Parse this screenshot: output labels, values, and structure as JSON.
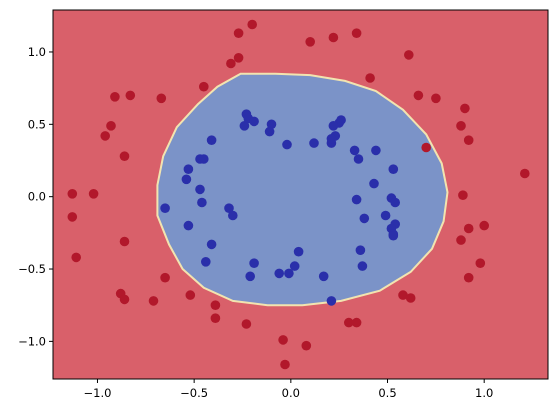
{
  "chart_data": {
    "type": "scatter",
    "title": "",
    "xlabel": "",
    "ylabel": "",
    "xlim": [
      -1.23,
      1.33
    ],
    "ylim": [
      -1.26,
      1.29
    ],
    "x_ticks": [
      -1.0,
      -0.5,
      0.0,
      0.5,
      1.0
    ],
    "x_tick_labels": [
      "−1.0",
      "−0.5",
      "0.0",
      "0.5",
      "1.0"
    ],
    "y_ticks": [
      -1.0,
      -0.5,
      0.0,
      0.5,
      1.0
    ],
    "y_tick_labels": [
      "−1.0",
      "−0.5",
      "0.0",
      "0.5",
      "1.0"
    ],
    "grid": false,
    "legend": "none",
    "background_region_color": "#d9606a",
    "decision_region_color": "#7b93c8",
    "boundary_color": "#f2e4b0",
    "decision_boundary": [
      [
        -0.26,
        0.85
      ],
      [
        -0.08,
        0.85
      ],
      [
        0.1,
        0.84
      ],
      [
        0.28,
        0.8
      ],
      [
        0.44,
        0.73
      ],
      [
        0.58,
        0.6
      ],
      [
        0.7,
        0.43
      ],
      [
        0.78,
        0.23
      ],
      [
        0.81,
        0.03
      ],
      [
        0.79,
        -0.17
      ],
      [
        0.73,
        -0.36
      ],
      [
        0.62,
        -0.52
      ],
      [
        0.46,
        -0.65
      ],
      [
        0.26,
        -0.72
      ],
      [
        0.06,
        -0.75
      ],
      [
        -0.12,
        -0.75
      ],
      [
        -0.3,
        -0.72
      ],
      [
        -0.45,
        -0.63
      ],
      [
        -0.56,
        -0.5
      ],
      [
        -0.63,
        -0.33
      ],
      [
        -0.69,
        -0.13
      ],
      [
        -0.69,
        0.08
      ],
      [
        -0.66,
        0.28
      ],
      [
        -0.59,
        0.48
      ],
      [
        -0.48,
        0.64
      ],
      [
        -0.38,
        0.76
      ]
    ],
    "series": [
      {
        "color": "#b2182b",
        "points": [
          [
            -0.2,
            1.19
          ],
          [
            -0.27,
            1.13
          ],
          [
            -0.27,
            0.96
          ],
          [
            -0.31,
            0.92
          ],
          [
            0.1,
            1.07
          ],
          [
            0.22,
            1.1
          ],
          [
            0.34,
            1.13
          ],
          [
            0.61,
            0.98
          ],
          [
            0.41,
            0.82
          ],
          [
            -0.45,
            0.76
          ],
          [
            -0.91,
            0.69
          ],
          [
            -0.83,
            0.7
          ],
          [
            -0.67,
            0.68
          ],
          [
            0.66,
            0.7
          ],
          [
            0.75,
            0.68
          ],
          [
            0.9,
            0.61
          ],
          [
            -0.93,
            0.49
          ],
          [
            -0.96,
            0.42
          ],
          [
            0.88,
            0.49
          ],
          [
            0.92,
            0.39
          ],
          [
            -0.86,
            0.28
          ],
          [
            0.7,
            0.34
          ],
          [
            -1.13,
            0.02
          ],
          [
            -1.02,
            0.02
          ],
          [
            0.89,
            0.01
          ],
          [
            1.21,
            0.16
          ],
          [
            -1.13,
            -0.14
          ],
          [
            -1.11,
            -0.42
          ],
          [
            1.0,
            -0.2
          ],
          [
            0.92,
            -0.22
          ],
          [
            -0.86,
            -0.31
          ],
          [
            0.88,
            -0.3
          ],
          [
            -0.65,
            -0.56
          ],
          [
            0.98,
            -0.46
          ],
          [
            0.92,
            -0.56
          ],
          [
            -0.52,
            -0.68
          ],
          [
            0.58,
            -0.68
          ],
          [
            0.62,
            -0.7
          ],
          [
            -0.88,
            -0.67
          ],
          [
            -0.86,
            -0.71
          ],
          [
            -0.71,
            -0.72
          ],
          [
            -0.39,
            -0.75
          ],
          [
            -0.39,
            -0.84
          ],
          [
            -0.23,
            -0.88
          ],
          [
            0.3,
            -0.87
          ],
          [
            0.34,
            -0.87
          ],
          [
            -0.04,
            -0.99
          ],
          [
            0.08,
            -1.03
          ],
          [
            -0.03,
            -1.16
          ]
        ]
      },
      {
        "color": "#2a2faa",
        "points": [
          [
            -0.23,
            0.57
          ],
          [
            -0.24,
            0.49
          ],
          [
            -0.22,
            0.54
          ],
          [
            -0.19,
            0.52
          ],
          [
            -0.11,
            0.45
          ],
          [
            -0.1,
            0.5
          ],
          [
            0.25,
            0.51
          ],
          [
            0.26,
            0.53
          ],
          [
            0.22,
            0.49
          ],
          [
            0.23,
            0.42
          ],
          [
            -0.41,
            0.39
          ],
          [
            0.21,
            0.37
          ],
          [
            0.21,
            0.4
          ],
          [
            0.12,
            0.37
          ],
          [
            -0.02,
            0.36
          ],
          [
            0.33,
            0.32
          ],
          [
            0.44,
            0.32
          ],
          [
            0.35,
            0.26
          ],
          [
            -0.47,
            0.26
          ],
          [
            -0.45,
            0.26
          ],
          [
            0.53,
            0.19
          ],
          [
            -0.53,
            0.19
          ],
          [
            -0.54,
            0.12
          ],
          [
            0.43,
            0.09
          ],
          [
            -0.47,
            0.05
          ],
          [
            -0.46,
            -0.04
          ],
          [
            0.34,
            -0.02
          ],
          [
            0.52,
            -0.01
          ],
          [
            0.54,
            -0.04
          ],
          [
            -0.65,
            -0.08
          ],
          [
            -0.32,
            -0.08
          ],
          [
            -0.3,
            -0.13
          ],
          [
            0.49,
            -0.13
          ],
          [
            0.38,
            -0.15
          ],
          [
            0.54,
            -0.19
          ],
          [
            0.52,
            -0.22
          ],
          [
            -0.53,
            -0.2
          ],
          [
            0.53,
            -0.26
          ],
          [
            0.53,
            -0.27
          ],
          [
            -0.41,
            -0.33
          ],
          [
            0.36,
            -0.37
          ],
          [
            0.37,
            -0.48
          ],
          [
            -0.44,
            -0.45
          ],
          [
            -0.19,
            -0.46
          ],
          [
            -0.21,
            -0.55
          ],
          [
            -0.06,
            -0.53
          ],
          [
            -0.01,
            -0.53
          ],
          [
            0.04,
            -0.38
          ],
          [
            0.02,
            -0.48
          ],
          [
            0.17,
            -0.55
          ],
          [
            0.21,
            -0.72
          ]
        ]
      }
    ]
  }
}
